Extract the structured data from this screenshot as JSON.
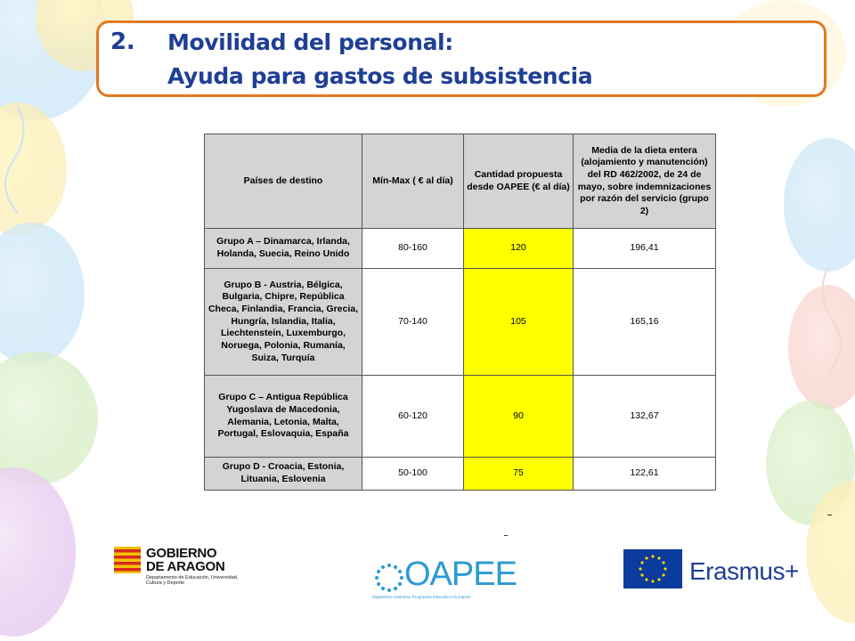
{
  "title": {
    "number": "2.",
    "line1": "Movilidad del personal:",
    "line2": "Ayuda para gastos de subsistencia"
  },
  "table": {
    "headers": [
      "Países de destino",
      "Mín-Max ( € al día)",
      "Cantidad propuesta desde OAPEE (€ al día)",
      "Media de la dieta entera (alojamiento y manutención) del RD 462/2002, de 24 de mayo, sobre indemnizaciones por razón del servicio (grupo 2)"
    ],
    "rows": [
      {
        "group": "Grupo A – Dinamarca, Irlanda, Holanda, Suecia, Reino Unido",
        "range": "80-160",
        "proposed": "120",
        "average": "196,41"
      },
      {
        "group": "Grupo B - Austria, Bélgica, Bulgaria, Chipre, República Checa, Finlandia, Francia, Grecia, Hungría, Islandia, Italia, Liechtenstein, Luxemburgo, Noruega, Polonia, Rumanía, Suiza, Turquía",
        "range": "70-140",
        "proposed": "105",
        "average": "165,16"
      },
      {
        "group": "Grupo C – Antigua República Yugoslava de Macedonia, Alemania, Letonia, Malta, Portugal, Eslovaquia, España",
        "range": "60-120",
        "proposed": "90",
        "average": "132,67"
      },
      {
        "group": "Grupo D - Croacia, Estonia, Lituania, Eslovenia",
        "range": "50-100",
        "proposed": "75",
        "average": "122,61"
      }
    ]
  },
  "logos": {
    "gobierno": {
      "line1": "GOBIERNO",
      "line2": "DE ARAGON",
      "dept": "Departamento de Educación, Universidad, Cultura y Deporte"
    },
    "oapee": {
      "word": "OAPEE",
      "sub": "Organismo Autónomo Programas Educativos Europeos"
    },
    "erasmus": {
      "word": "Erasmus+"
    }
  },
  "colors": {
    "title_text": "#1f3f96",
    "title_border": "#e07b22",
    "highlight": "#ffff00",
    "header_bg": "#d4d4d4"
  }
}
